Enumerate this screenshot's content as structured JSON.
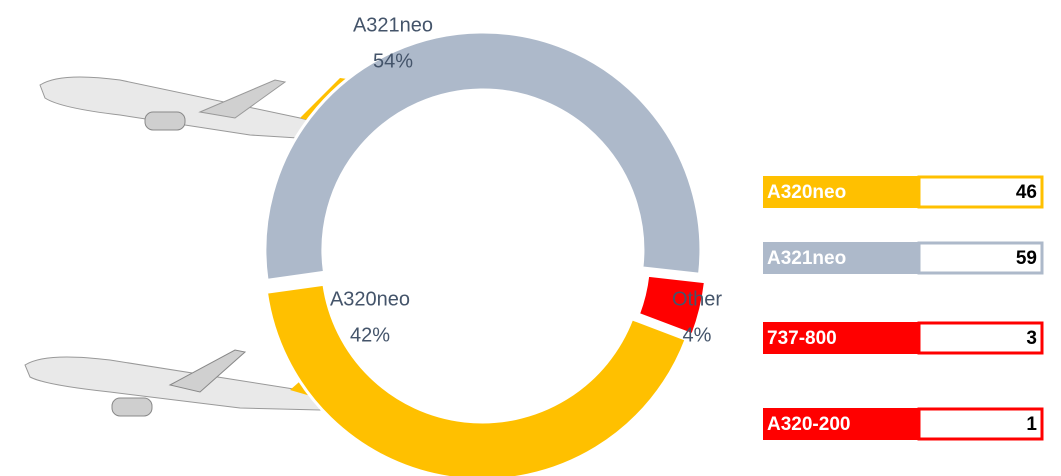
{
  "chart_data": {
    "type": "donut",
    "categories": [
      "A320neo",
      "A321neo",
      "Other"
    ],
    "values": [
      42,
      54,
      4
    ],
    "value_labels": [
      "42%",
      "54%",
      "4%"
    ],
    "colors": [
      "#FFC000",
      "#ADB9CA",
      "#FF0000"
    ]
  },
  "table": {
    "rows": [
      {
        "label": "A320neo",
        "value": 46,
        "color": "#FFC000"
      },
      {
        "label": "A321neo",
        "value": 59,
        "color": "#ADB9CA"
      },
      {
        "label": "737-800",
        "value": 3,
        "color": "#FF0000"
      },
      {
        "label": "A320-200",
        "value": 1,
        "color": "#FF0000"
      }
    ]
  }
}
